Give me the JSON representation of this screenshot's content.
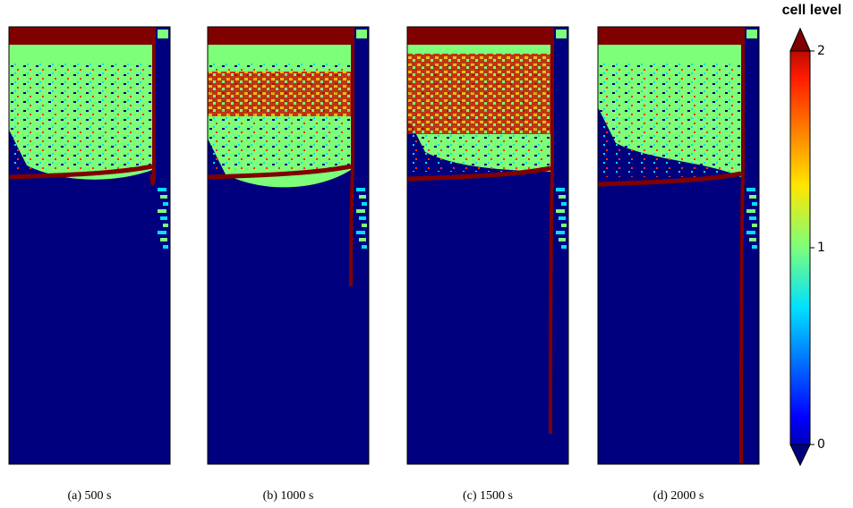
{
  "panels": [
    {
      "caption": "(a) 500 s"
    },
    {
      "caption": "(b) 1000 s"
    },
    {
      "caption": "(c) 1500 s"
    },
    {
      "caption": "(d) 2000 s"
    }
  ],
  "colorbar": {
    "label": "cell level",
    "lim": [
      0,
      2
    ],
    "ticks": [
      0,
      1,
      2
    ]
  }
}
